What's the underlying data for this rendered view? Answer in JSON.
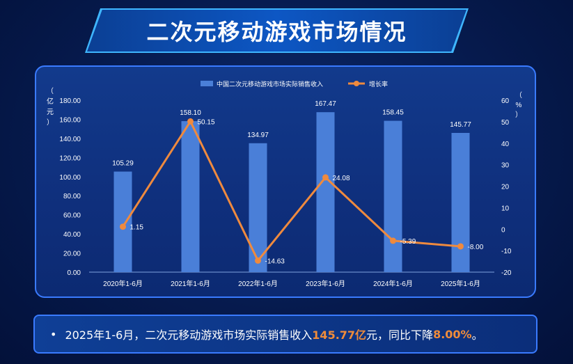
{
  "title": "二次元移动游戏市场情况",
  "summary": {
    "bullet": "•",
    "prefix": "2025年1-6月，二次元移动游戏市场实际销售收入",
    "revenue": "145.77亿",
    "middle": "元，同比下降",
    "rate": "8.00%",
    "suffix": "。"
  },
  "chart_data": {
    "type": "bar+line",
    "categories": [
      "2020年1-6月",
      "2021年1-6月",
      "2022年1-6月",
      "2023年1-6月",
      "2024年1-6月",
      "2025年1-6月"
    ],
    "series": [
      {
        "name": "中国二次元移动游戏市场实际销售收入",
        "type": "bar",
        "axis": "left",
        "color": "#4a7fd8",
        "values": [
          105.29,
          158.1,
          134.97,
          167.47,
          158.45,
          145.77
        ],
        "labels": [
          "105.29",
          "158.10",
          "134.97",
          "167.47",
          "158.45",
          "145.77"
        ]
      },
      {
        "name": "增长率",
        "type": "line",
        "axis": "right",
        "color": "#ef8a3e",
        "values": [
          1.15,
          50.15,
          -14.63,
          24.08,
          -5.39,
          -8.0
        ],
        "labels": [
          "1.15",
          "50.15",
          "-14.63",
          "24.08",
          "-5.39",
          "-8.00"
        ]
      }
    ],
    "left_axis": {
      "label": "（亿元）",
      "label_chars": [
        "（",
        "亿",
        "元",
        "）"
      ],
      "ylim": [
        0,
        180
      ],
      "ticks": [
        "0.00",
        "20.00",
        "40.00",
        "60.00",
        "80.00",
        "100.00",
        "120.00",
        "140.00",
        "160.00",
        "180.00"
      ]
    },
    "right_axis": {
      "label": "（%）",
      "label_chars": [
        "（",
        "%",
        "）"
      ],
      "ylim": [
        -20,
        60
      ],
      "ticks": [
        "-20",
        "-10",
        "0",
        "10",
        "20",
        "30",
        "40",
        "50",
        "60"
      ]
    },
    "legend_position": "top-center",
    "grid": false
  }
}
